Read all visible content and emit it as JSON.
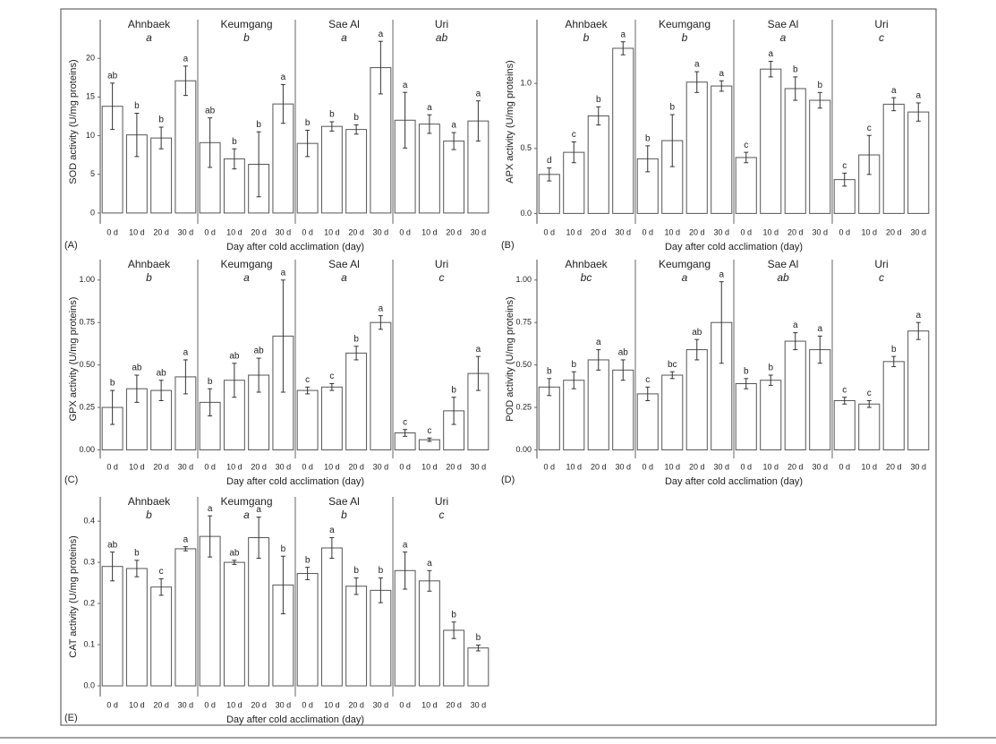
{
  "chart_data": [
    {
      "type": "bar",
      "panel_label": "(A)",
      "ylabel": "SOD activity (U/mg proteins)",
      "xlabel": "Day after cold acclimation (day)",
      "categories": [
        "0 d",
        "10 d",
        "20 d",
        "30 d"
      ],
      "ylim": [
        -1.4,
        25
      ],
      "yticks": [
        0,
        5,
        10,
        15,
        20
      ],
      "facets": [
        {
          "title": "Ahnbaek",
          "group": "a",
          "values": [
            13.8,
            10.1,
            9.7,
            17.1
          ],
          "errors": [
            3,
            2.8,
            1.4,
            1.9
          ],
          "letters": [
            "ab",
            "b",
            "b",
            "a"
          ]
        },
        {
          "title": "Keumgang",
          "group": "b",
          "values": [
            9.1,
            7.0,
            6.3,
            14.1
          ],
          "errors": [
            3.2,
            1.3,
            4.2,
            2.5
          ],
          "letters": [
            "ab",
            "b",
            "b",
            "a"
          ]
        },
        {
          "title": "Sae Al",
          "group": "a",
          "values": [
            9.0,
            11.2,
            10.8,
            18.8
          ],
          "errors": [
            1.7,
            0.6,
            0.6,
            3.4
          ],
          "letters": [
            "b",
            "b",
            "b",
            "a"
          ]
        },
        {
          "title": "Uri",
          "group": "ab",
          "values": [
            12.0,
            11.5,
            9.3,
            11.9
          ],
          "errors": [
            3.6,
            1.2,
            1.1,
            2.6
          ],
          "letters": [
            "a",
            "a",
            "a",
            "a"
          ]
        }
      ]
    },
    {
      "type": "bar",
      "panel_label": "(B)",
      "ylabel": "APX activity (U/mg proteins)",
      "xlabel": "Day after cold acclimation (day)",
      "categories": [
        "0 d",
        "10 d",
        "20 d",
        "30 d"
      ],
      "ylim": [
        -0.08,
        1.49
      ],
      "yticks": [
        {
          "value": 0,
          "label": "0.0"
        },
        {
          "value": 0.5,
          "label": "0.5"
        },
        {
          "value": 1,
          "label": "1.0"
        }
      ],
      "facets": [
        {
          "title": "Ahnbaek",
          "group": "b",
          "values": [
            0.3,
            0.47,
            0.75,
            1.27
          ],
          "errors": [
            0.05,
            0.08,
            0.07,
            0.05
          ],
          "letters": [
            "d",
            "c",
            "b",
            "a"
          ]
        },
        {
          "title": "Keumgang",
          "group": "b",
          "values": [
            0.42,
            0.56,
            1.01,
            0.98
          ],
          "errors": [
            0.1,
            0.2,
            0.08,
            0.04
          ],
          "letters": [
            "b",
            "b",
            "a",
            "a"
          ]
        },
        {
          "title": "Sae Al",
          "group": "a",
          "values": [
            0.43,
            1.11,
            0.96,
            0.87
          ],
          "errors": [
            0.04,
            0.06,
            0.09,
            0.06
          ],
          "letters": [
            "c",
            "a",
            "b",
            "b"
          ]
        },
        {
          "title": "Uri",
          "group": "c",
          "values": [
            0.26,
            0.45,
            0.84,
            0.78
          ],
          "errors": [
            0.05,
            0.15,
            0.05,
            0.07
          ],
          "letters": [
            "c",
            "c",
            "a",
            "a"
          ]
        }
      ]
    },
    {
      "type": "bar",
      "panel_label": "(C)",
      "ylabel": "GPX activity (U/mg proteins)",
      "xlabel": "Day after cold acclimation (day)",
      "categories": [
        "0 d",
        "10 d",
        "20 d",
        "30 d"
      ],
      "ylim": [
        -0.05,
        1.12
      ],
      "yticks": [
        {
          "value": 0,
          "label": "0.00"
        },
        {
          "value": 0.25,
          "label": "0.25"
        },
        {
          "value": 0.5,
          "label": "0.50"
        },
        {
          "value": 0.75,
          "label": "0.75"
        },
        {
          "value": 1,
          "label": "1.00"
        }
      ],
      "facets": [
        {
          "title": "Ahnbaek",
          "group": "b",
          "values": [
            0.25,
            0.36,
            0.35,
            0.43
          ],
          "errors": [
            0.1,
            0.08,
            0.06,
            0.1
          ],
          "letters": [
            "b",
            "ab",
            "ab",
            "a"
          ]
        },
        {
          "title": "Keumgang",
          "group": "a",
          "values": [
            0.28,
            0.41,
            0.44,
            0.67
          ],
          "errors": [
            0.08,
            0.1,
            0.1,
            0.33
          ],
          "letters": [
            "b",
            "ab",
            "ab",
            "a"
          ]
        },
        {
          "title": "Sae Al",
          "group": "a",
          "values": [
            0.35,
            0.37,
            0.57,
            0.75
          ],
          "errors": [
            0.02,
            0.02,
            0.04,
            0.04
          ],
          "letters": [
            "c",
            "c",
            "b",
            "a"
          ]
        },
        {
          "title": "Uri",
          "group": "c",
          "values": [
            0.1,
            0.06,
            0.23,
            0.45
          ],
          "errors": [
            0.02,
            0.01,
            0.08,
            0.1
          ],
          "letters": [
            "c",
            "c",
            "b",
            "a"
          ]
        }
      ]
    },
    {
      "type": "bar",
      "panel_label": "(D)",
      "ylabel": "POD activity (U/mg proteins)",
      "xlabel": "Day after cold acclimation (day)",
      "categories": [
        "0 d",
        "10 d",
        "20 d",
        "30 d"
      ],
      "ylim": [
        -0.05,
        1.12
      ],
      "yticks": [
        {
          "value": 0,
          "label": "0.00"
        },
        {
          "value": 0.25,
          "label": "0.25"
        },
        {
          "value": 0.5,
          "label": "0.50"
        },
        {
          "value": 0.75,
          "label": "0.75"
        },
        {
          "value": 1,
          "label": "1.00"
        }
      ],
      "facets": [
        {
          "title": "Ahnbaek",
          "group": "bc",
          "values": [
            0.37,
            0.41,
            0.53,
            0.47
          ],
          "errors": [
            0.05,
            0.05,
            0.06,
            0.06
          ],
          "letters": [
            "b",
            "b",
            "a",
            "ab"
          ]
        },
        {
          "title": "Keumgang",
          "group": "a",
          "values": [
            0.33,
            0.44,
            0.59,
            0.75
          ],
          "errors": [
            0.04,
            0.02,
            0.06,
            0.24
          ],
          "letters": [
            "c",
            "bc",
            "ab",
            "a"
          ]
        },
        {
          "title": "Sae Al",
          "group": "ab",
          "values": [
            0.39,
            0.41,
            0.64,
            0.59
          ],
          "errors": [
            0.03,
            0.03,
            0.05,
            0.08
          ],
          "letters": [
            "b",
            "b",
            "a",
            "a"
          ]
        },
        {
          "title": "Uri",
          "group": "c",
          "values": [
            0.29,
            0.27,
            0.52,
            0.7
          ],
          "errors": [
            0.02,
            0.02,
            0.03,
            0.05
          ],
          "letters": [
            "c",
            "c",
            "b",
            "a"
          ]
        }
      ]
    },
    {
      "type": "bar",
      "panel_label": "(E)",
      "ylabel": "CAT activity (U/mg proteins)",
      "xlabel": "Day after cold acclimation (day)",
      "categories": [
        "0 d",
        "10 d",
        "20 d",
        "30 d"
      ],
      "ylim": [
        -0.026,
        0.459
      ],
      "yticks": [
        {
          "value": 0,
          "label": "0.0"
        },
        {
          "value": 0.1,
          "label": "0.1"
        },
        {
          "value": 0.2,
          "label": "0.2"
        },
        {
          "value": 0.3,
          "label": "0.3"
        },
        {
          "value": 0.4,
          "label": "0.4"
        }
      ],
      "facets": [
        {
          "title": "Ahnbaek",
          "group": "b",
          "values": [
            0.29,
            0.285,
            0.24,
            0.333
          ],
          "errors": [
            0.035,
            0.02,
            0.02,
            0.005
          ],
          "letters": [
            "ab",
            "b",
            "c",
            "a"
          ]
        },
        {
          "title": "Keumgang",
          "group": "a",
          "values": [
            0.363,
            0.3,
            0.36,
            0.245
          ],
          "errors": [
            0.05,
            0.005,
            0.05,
            0.07
          ],
          "letters": [
            "a",
            "ab",
            "a",
            "b"
          ]
        },
        {
          "title": "Sae Al",
          "group": "b",
          "values": [
            0.273,
            0.335,
            0.242,
            0.232
          ],
          "errors": [
            0.015,
            0.025,
            0.02,
            0.03
          ],
          "letters": [
            "b",
            "a",
            "b",
            "b"
          ]
        },
        {
          "title": "Uri",
          "group": "c",
          "values": [
            0.28,
            0.255,
            0.135,
            0.092
          ],
          "errors": [
            0.045,
            0.025,
            0.02,
            0.007
          ],
          "letters": [
            "a",
            "a",
            "b",
            "b"
          ]
        }
      ]
    }
  ]
}
